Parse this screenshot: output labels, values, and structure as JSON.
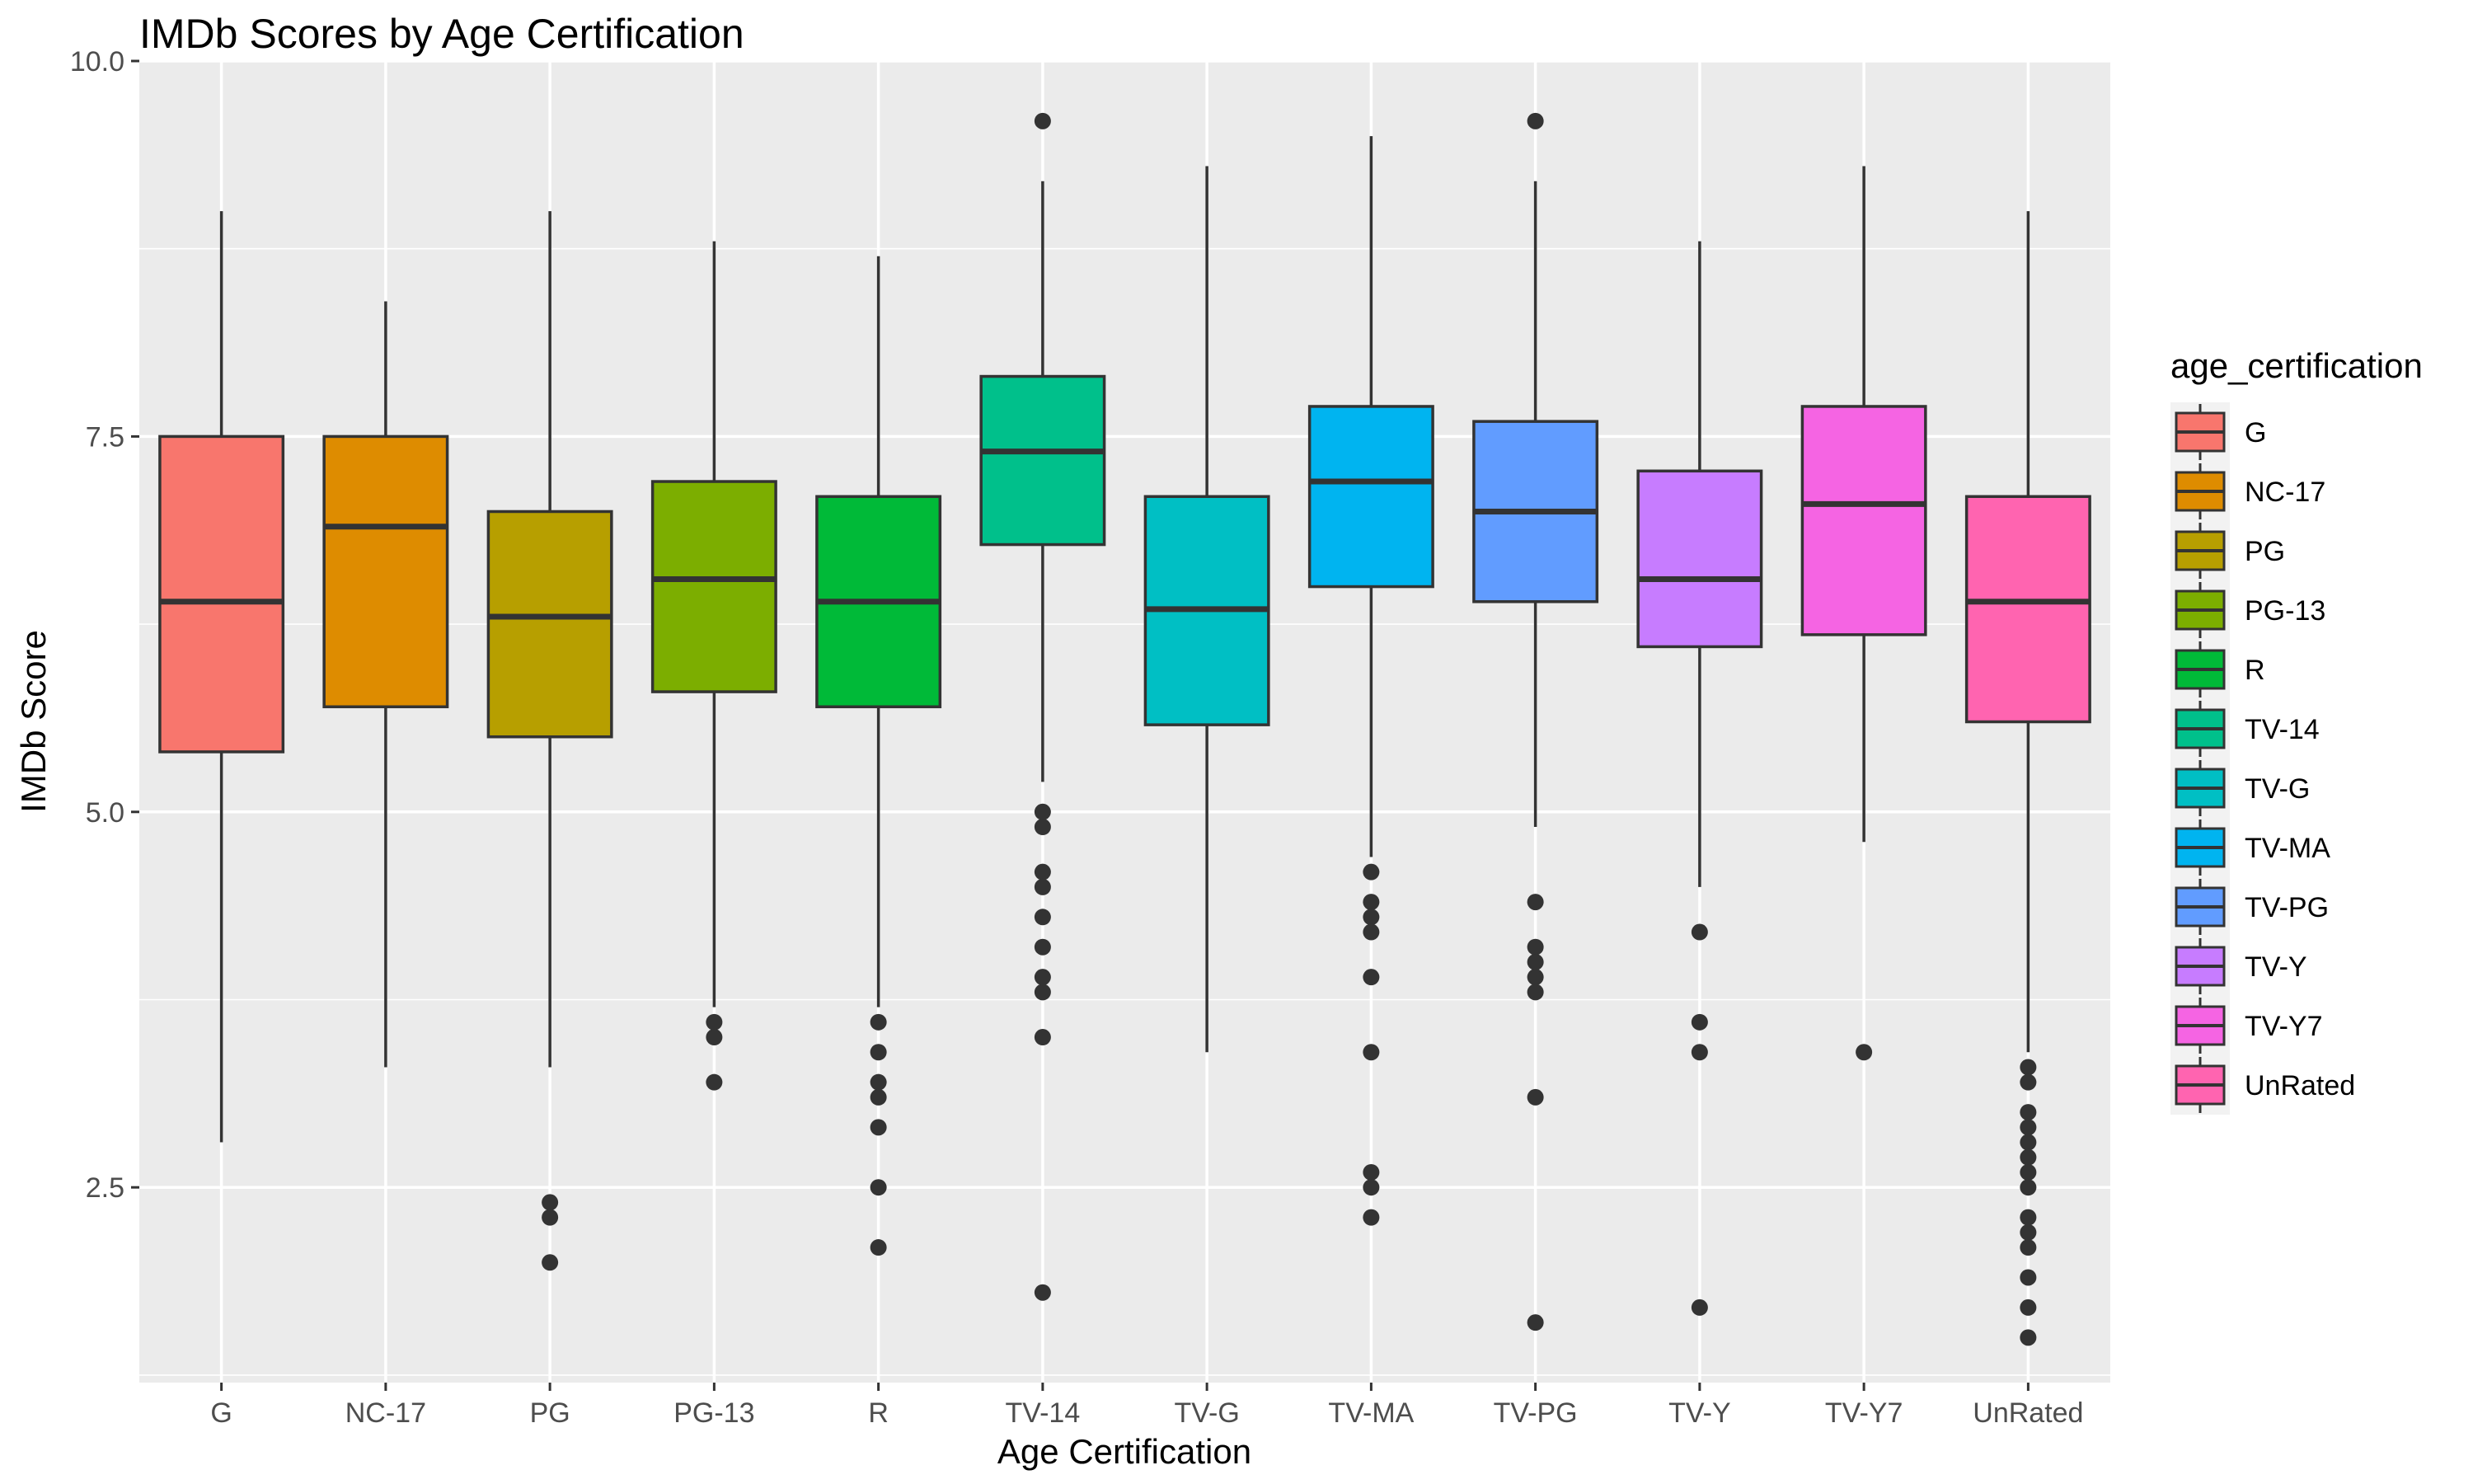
{
  "chart_data": {
    "type": "box",
    "title": "IMDb Scores by Age Certification",
    "xlabel": "Age Certification",
    "ylabel": "IMDb Score",
    "ylim": [
      1.2,
      10.0
    ],
    "yticks": [
      "2.5",
      "5.0",
      "7.5",
      "10.0"
    ],
    "grid": true,
    "legend": {
      "title": "age_certification",
      "position": "right"
    },
    "series": [
      {
        "name": "G",
        "color": "#F8766D",
        "whisker_low": 2.8,
        "q1": 5.4,
        "median": 6.4,
        "q3": 7.5,
        "whisker_high": 9.0,
        "outliers": []
      },
      {
        "name": "NC-17",
        "color": "#DE8C00",
        "whisker_low": 3.3,
        "q1": 5.7,
        "median": 6.9,
        "q3": 7.5,
        "whisker_high": 8.4,
        "outliers": []
      },
      {
        "name": "PG",
        "color": "#B79F00",
        "whisker_low": 3.3,
        "q1": 5.5,
        "median": 6.3,
        "q3": 7.0,
        "whisker_high": 9.0,
        "outliers": [
          2.4,
          2.3,
          2.0
        ]
      },
      {
        "name": "PG-13",
        "color": "#7CAE00",
        "whisker_low": 3.7,
        "q1": 5.8,
        "median": 6.55,
        "q3": 7.2,
        "whisker_high": 8.8,
        "outliers": [
          3.6,
          3.5,
          3.2
        ]
      },
      {
        "name": "R",
        "color": "#00BA38",
        "whisker_low": 3.7,
        "q1": 5.7,
        "median": 6.4,
        "q3": 7.1,
        "whisker_high": 8.7,
        "outliers": [
          3.6,
          3.4,
          3.2,
          3.1,
          2.9,
          2.5,
          2.1
        ]
      },
      {
        "name": "TV-14",
        "color": "#00C08B",
        "whisker_low": 5.2,
        "q1": 6.78,
        "median": 7.4,
        "q3": 7.9,
        "whisker_high": 9.2,
        "outliers": [
          9.6,
          5.0,
          4.9,
          4.6,
          4.5,
          4.3,
          4.1,
          3.9,
          3.8,
          3.5,
          1.8
        ]
      },
      {
        "name": "TV-G",
        "color": "#00BFC4",
        "whisker_low": 3.4,
        "q1": 5.58,
        "median": 6.35,
        "q3": 7.1,
        "whisker_high": 9.3,
        "outliers": []
      },
      {
        "name": "TV-MA",
        "color": "#00B4F0",
        "whisker_low": 4.7,
        "q1": 6.5,
        "median": 7.2,
        "q3": 7.7,
        "whisker_high": 9.5,
        "outliers": [
          4.6,
          4.4,
          4.3,
          4.2,
          3.9,
          3.4,
          2.6,
          2.5,
          2.3
        ]
      },
      {
        "name": "TV-PG",
        "color": "#619CFF",
        "whisker_low": 4.9,
        "q1": 6.4,
        "median": 7.0,
        "q3": 7.6,
        "whisker_high": 9.2,
        "outliers": [
          9.6,
          4.4,
          4.1,
          4.0,
          3.9,
          3.8,
          3.1,
          1.6
        ]
      },
      {
        "name": "TV-Y",
        "color": "#C77CFF",
        "whisker_low": 4.5,
        "q1": 6.1,
        "median": 6.55,
        "q3": 7.27,
        "whisker_high": 8.8,
        "outliers": [
          4.2,
          3.6,
          3.4,
          1.7
        ]
      },
      {
        "name": "TV-Y7",
        "color": "#F564E3",
        "whisker_low": 4.8,
        "q1": 6.18,
        "median": 7.05,
        "q3": 7.7,
        "whisker_high": 9.3,
        "outliers": [
          3.4
        ]
      },
      {
        "name": "UnRated",
        "color": "#FF64B0",
        "whisker_low": 3.4,
        "q1": 5.6,
        "median": 6.4,
        "q3": 7.1,
        "whisker_high": 9.0,
        "outliers": [
          3.3,
          3.2,
          3.0,
          2.9,
          2.8,
          2.7,
          2.6,
          2.5,
          2.3,
          2.2,
          2.1,
          1.9,
          1.7,
          1.5
        ]
      }
    ]
  }
}
